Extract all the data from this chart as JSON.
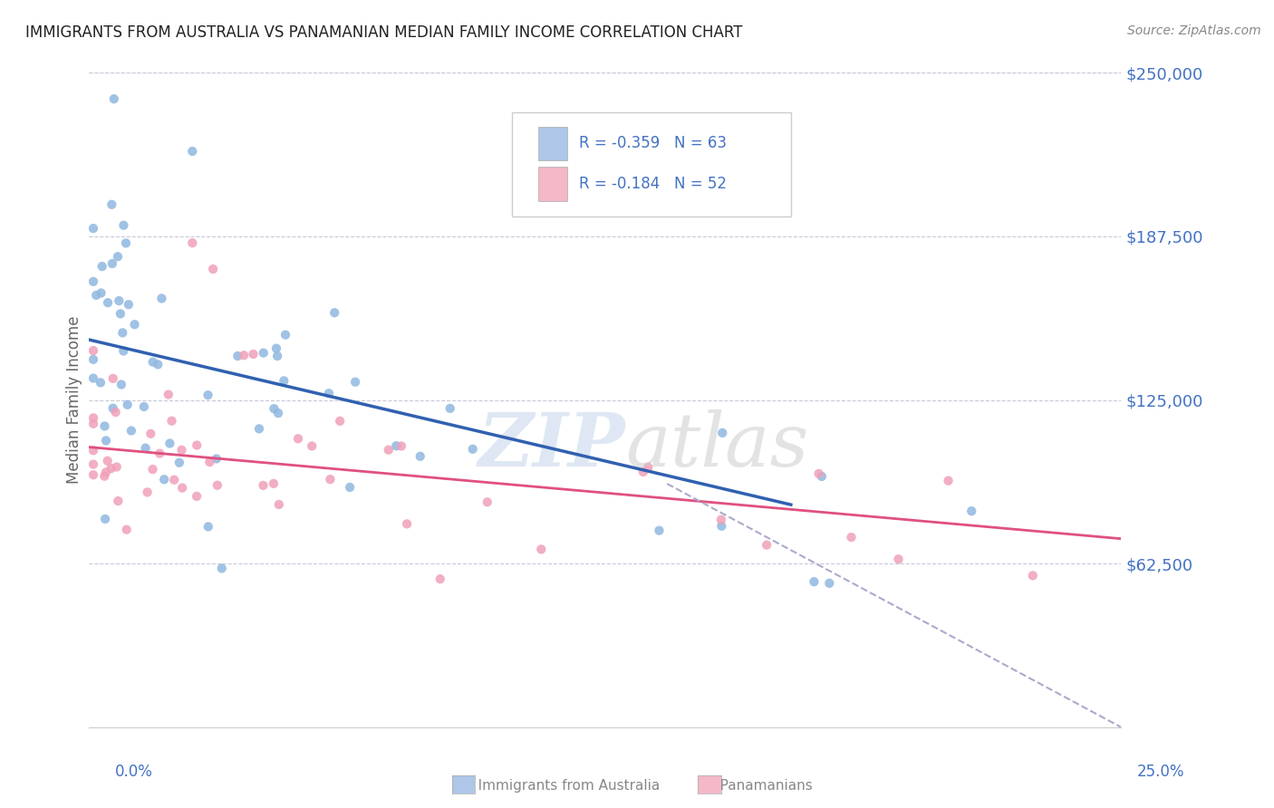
{
  "title": "IMMIGRANTS FROM AUSTRALIA VS PANAMANIAN MEDIAN FAMILY INCOME CORRELATION CHART",
  "source": "Source: ZipAtlas.com",
  "ylabel": "Median Family Income",
  "xlim": [
    0.0,
    0.25
  ],
  "ylim": [
    0,
    250000
  ],
  "yticks": [
    62500,
    125000,
    187500,
    250000
  ],
  "ytick_labels": [
    "$62,500",
    "$125,000",
    "$187,500",
    "$250,000"
  ],
  "watermark_zip": "ZIP",
  "watermark_atlas": "atlas",
  "blue_line_x0": 0.0,
  "blue_line_y0": 148000,
  "blue_line_x1": 0.17,
  "blue_line_y1": 85000,
  "pink_line_x0": 0.0,
  "pink_line_y0": 107000,
  "pink_line_x1": 0.25,
  "pink_line_y1": 72000,
  "dash_line_x0": 0.14,
  "dash_line_y0": 93000,
  "dash_line_x1": 0.25,
  "dash_line_y1": 0,
  "blue_line_color": "#3060b0",
  "pink_line_color": "#e05080",
  "dash_line_color": "#aaaacc",
  "scatter_blue_color": "#90b8e0",
  "scatter_pink_color": "#f0a0b8",
  "scatter_size": 55,
  "scatter_alpha": 0.85,
  "grid_color": "#c8c8d8",
  "background_color": "#ffffff",
  "title_color": "#222222",
  "axis_label_color": "#666666",
  "ytick_color": "#4472c4",
  "xtick_color": "#4472c4",
  "source_color": "#888888",
  "legend_text_color": "#4472c4",
  "legend_blue_box": "#aec6e8",
  "legend_pink_box": "#f4b8c8",
  "legend_border_color": "#cccccc",
  "bottom_legend_color": "#888888"
}
